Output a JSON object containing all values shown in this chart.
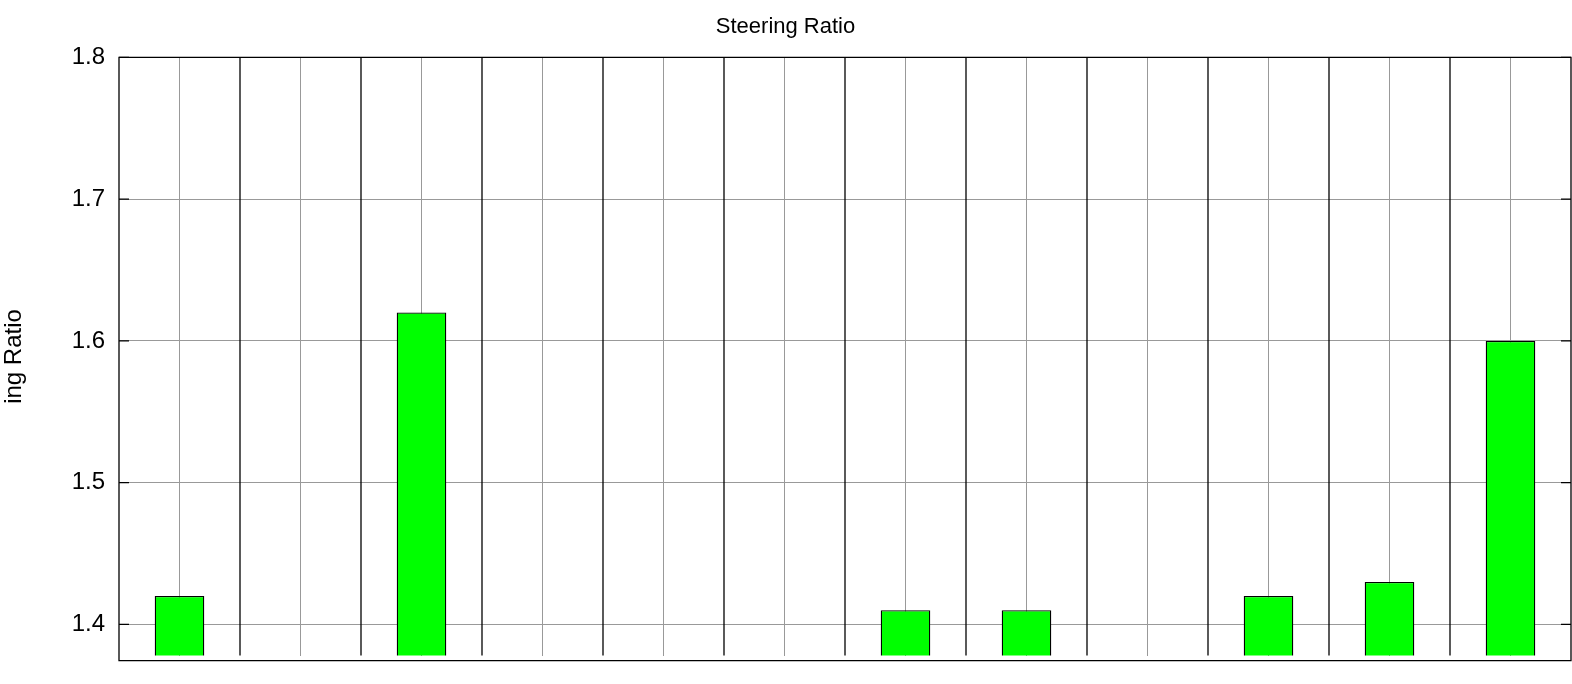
{
  "chart_data": {
    "type": "bar",
    "title": "Steering Ratio",
    "ylabel": "ing Ratio",
    "categories": [
      null,
      null,
      null,
      null,
      null,
      null,
      null,
      null,
      null,
      null,
      null,
      null
    ],
    "values": [
      1.42,
      null,
      1.62,
      null,
      null,
      null,
      1.41,
      1.41,
      null,
      1.42,
      1.43,
      1.6
    ],
    "color": "#00ff00",
    "ylim": [
      1.378,
      1.8
    ],
    "yticks": [
      1.4,
      1.5,
      1.6,
      1.7,
      1.8
    ],
    "grid": true,
    "legend": false
  }
}
